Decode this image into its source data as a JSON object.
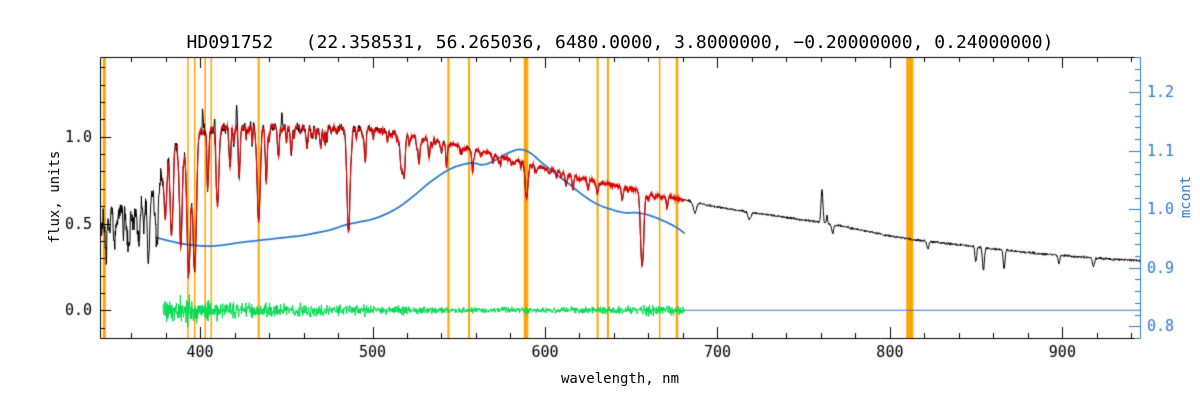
{
  "chart_data": {
    "type": "line",
    "title": "HD091752   (22.358531, 56.265036, 6480.0000, 3.8000000, −0.20000000, 0.24000000)",
    "xlabel": "wavelength, nm",
    "ylabel": "flux, units",
    "ylabel_right": "mcont",
    "xlim": [
      342,
      945
    ],
    "ylim": [
      -0.16,
      1.46
    ],
    "ylim_right": [
      0.78,
      1.26
    ],
    "x_ticks": [
      400,
      500,
      600,
      700,
      800,
      900
    ],
    "x_minor_step": 20,
    "y_ticks": [
      0.0,
      0.5,
      1.0
    ],
    "y_minor_step": 0.1,
    "y_ticks_right": [
      0.8,
      0.9,
      1.0,
      1.1,
      1.2
    ],
    "y_minor_right_step": 0.02,
    "grid": false,
    "legend": null,
    "colors": {
      "observed": "#000000",
      "fit": "#E60000",
      "mcont": "#2E7BD0",
      "residual": "#00DC50",
      "mask": "#FFA500",
      "axes": "#000000",
      "background": "#FFFFFF"
    },
    "series": [
      {
        "name": "observed spectrum",
        "color_key": "observed",
        "range": [
          342,
          945
        ]
      },
      {
        "name": "model fit",
        "color_key": "fit",
        "range": [
          378,
          681
        ]
      },
      {
        "name": "mcont continuum",
        "color_key": "mcont",
        "axis": "right",
        "range": [
          374,
          681
        ]
      },
      {
        "name": "fit residual",
        "color_key": "residual",
        "range": [
          378.5,
          681
        ],
        "center": 0.0
      },
      {
        "name": "zero line",
        "color_key": "mcont",
        "range": [
          681,
          945
        ],
        "value": 0.0
      }
    ],
    "mask_lines": [
      {
        "wl": 344.5,
        "w": 3
      },
      {
        "wl": 393.0,
        "w": 1.5
      },
      {
        "wl": 396.9,
        "w": 1.5
      },
      {
        "wl": 403.0,
        "w": 1.5
      },
      {
        "wl": 406.5,
        "w": 1.5
      },
      {
        "wl": 434.0,
        "w": 2
      },
      {
        "wl": 544.0,
        "w": 2
      },
      {
        "wl": 556.0,
        "w": 2
      },
      {
        "wl": 589.0,
        "w": 4.5
      },
      {
        "wl": 630.5,
        "w": 2
      },
      {
        "wl": 636.5,
        "w": 2
      },
      {
        "wl": 666.5,
        "w": 1.5
      },
      {
        "wl": 676.5,
        "w": 2.5
      },
      {
        "wl": 811.5,
        "w": 7
      }
    ],
    "model": {
      "observed_range": [
        342,
        945
      ],
      "fit_range": [
        378,
        681
      ],
      "fit_noise": 0.01,
      "residual_range": [
        378.5,
        681
      ],
      "zero_line_range": [
        681,
        945
      ],
      "continuum": [
        [
          342,
          0.56
        ],
        [
          352,
          0.58
        ],
        [
          360,
          0.6
        ],
        [
          366,
          0.63
        ],
        [
          372,
          0.68
        ],
        [
          376,
          0.76
        ],
        [
          380,
          0.86
        ],
        [
          384,
          0.94
        ],
        [
          388,
          0.99
        ],
        [
          393,
          1.01
        ],
        [
          398,
          1.03
        ],
        [
          404,
          1.04
        ],
        [
          412,
          1.055
        ],
        [
          420,
          1.065
        ],
        [
          430,
          1.065
        ],
        [
          440,
          1.06
        ],
        [
          452,
          1.055
        ],
        [
          464,
          1.05
        ],
        [
          476,
          1.055
        ],
        [
          488,
          1.05
        ],
        [
          500,
          1.042
        ],
        [
          512,
          1.025
        ],
        [
          524,
          1.005
        ],
        [
          536,
          0.98
        ],
        [
          548,
          0.953
        ],
        [
          560,
          0.925
        ],
        [
          572,
          0.895
        ],
        [
          584,
          0.862
        ],
        [
          596,
          0.832
        ],
        [
          608,
          0.8
        ],
        [
          620,
          0.768
        ],
        [
          632,
          0.738
        ],
        [
          644,
          0.712
        ],
        [
          656,
          0.69
        ],
        [
          668,
          0.662
        ],
        [
          681,
          0.635
        ],
        [
          695,
          0.605
        ],
        [
          710,
          0.578
        ],
        [
          725,
          0.556
        ],
        [
          740,
          0.535
        ],
        [
          755,
          0.513
        ],
        [
          770,
          0.49
        ],
        [
          785,
          0.458
        ],
        [
          800,
          0.428
        ],
        [
          815,
          0.405
        ],
        [
          830,
          0.388
        ],
        [
          845,
          0.372
        ],
        [
          860,
          0.354
        ],
        [
          875,
          0.338
        ],
        [
          890,
          0.324
        ],
        [
          905,
          0.312
        ],
        [
          920,
          0.3
        ],
        [
          935,
          0.29
        ],
        [
          945,
          0.285
        ]
      ],
      "noise_amp": [
        [
          342,
          0.055
        ],
        [
          362,
          0.055
        ],
        [
          372,
          0.05
        ],
        [
          382,
          0.038
        ],
        [
          395,
          0.03
        ],
        [
          410,
          0.026
        ],
        [
          440,
          0.022
        ],
        [
          480,
          0.02
        ],
        [
          505,
          0.016
        ],
        [
          530,
          0.011
        ],
        [
          560,
          0.009
        ],
        [
          600,
          0.008
        ],
        [
          640,
          0.008
        ],
        [
          680,
          0.007
        ],
        [
          720,
          0.006
        ],
        [
          760,
          0.006
        ],
        [
          800,
          0.006
        ],
        [
          850,
          0.0065
        ],
        [
          945,
          0.0065
        ]
      ],
      "absorption_lines": [
        [
          345.0,
          0.15,
          0.7
        ],
        [
          350.5,
          0.18,
          0.7
        ],
        [
          358.2,
          0.2,
          0.8
        ],
        [
          364.5,
          0.22,
          0.8
        ],
        [
          370.2,
          0.25,
          0.8
        ],
        [
          375.0,
          0.28,
          0.7
        ],
        [
          379.8,
          0.3,
          0.7
        ],
        [
          383.5,
          0.5,
          0.8
        ],
        [
          388.9,
          0.62,
          0.8
        ],
        [
          393.4,
          0.8,
          1.0
        ],
        [
          396.8,
          0.78,
          1.0
        ],
        [
          404.6,
          0.28,
          0.5
        ],
        [
          410.2,
          0.42,
          0.8
        ],
        [
          417.2,
          0.18,
          0.5
        ],
        [
          422.7,
          0.3,
          0.55
        ],
        [
          434.0,
          0.55,
          0.9
        ],
        [
          438.4,
          0.26,
          0.55
        ],
        [
          445.5,
          0.16,
          0.5
        ],
        [
          452.9,
          0.15,
          0.5
        ],
        [
          462.0,
          0.12,
          0.5
        ],
        [
          470.0,
          0.12,
          0.5
        ],
        [
          486.1,
          0.6,
          0.9
        ],
        [
          495.7,
          0.13,
          0.5
        ],
        [
          516.7,
          0.2,
          0.7
        ],
        [
          518.4,
          0.18,
          0.6
        ],
        [
          527.0,
          0.16,
          0.55
        ],
        [
          532.8,
          0.11,
          0.5
        ],
        [
          543.0,
          0.1,
          0.5
        ],
        [
          558.0,
          0.09,
          0.5
        ],
        [
          589.3,
          0.2,
          0.8
        ],
        [
          612.2,
          0.07,
          0.5
        ],
        [
          616.2,
          0.08,
          0.5
        ],
        [
          625.0,
          0.06,
          0.5
        ],
        [
          630.2,
          0.07,
          0.5
        ],
        [
          645.0,
          0.06,
          0.5
        ],
        [
          656.3,
          0.43,
          0.9
        ],
        [
          670.8,
          0.07,
          0.5
        ],
        [
          686.9,
          0.06,
          0.9
        ],
        [
          718.6,
          0.04,
          0.8
        ],
        [
          760.6,
          -0.19,
          0.55
        ],
        [
          766.8,
          0.05,
          0.6
        ],
        [
          822.0,
          0.04,
          0.6
        ],
        [
          849.8,
          0.09,
          0.5
        ],
        [
          854.2,
          0.13,
          0.55
        ],
        [
          866.2,
          0.11,
          0.5
        ],
        [
          898.0,
          0.05,
          0.5
        ],
        [
          918.0,
          0.05,
          0.6
        ]
      ],
      "black_spikes": [
        [
          401.6,
          -0.14,
          0.3
        ],
        [
          408.6,
          -0.11,
          0.3
        ],
        [
          421.3,
          -0.13,
          0.3
        ],
        [
          447.5,
          -0.09,
          0.3
        ],
        [
          763.5,
          -0.05,
          0.3
        ]
      ],
      "line_forest": {
        "range": [
          343,
          668
        ],
        "spacing": 0.9,
        "threshold": 0.45,
        "sigma": [
          0.22,
          0.45
        ],
        "amplitude": [
          [
            343,
            0.22
          ],
          [
            370,
            0.2
          ],
          [
            384,
            0.14
          ],
          [
            450,
            0.1
          ],
          [
            520,
            0.07
          ],
          [
            600,
            0.05
          ],
          [
            668,
            0.045
          ]
        ]
      },
      "residual_amp": [
        [
          378,
          0.045
        ],
        [
          395,
          0.04
        ],
        [
          420,
          0.032
        ],
        [
          460,
          0.03
        ],
        [
          500,
          0.022
        ],
        [
          530,
          0.016
        ],
        [
          560,
          0.013
        ],
        [
          590,
          0.014
        ],
        [
          615,
          0.016
        ],
        [
          640,
          0.02
        ],
        [
          660,
          0.025
        ],
        [
          681,
          0.022
        ]
      ],
      "mcont_points": [
        [
          374,
          0.952
        ],
        [
          382,
          0.946
        ],
        [
          390,
          0.941
        ],
        [
          398,
          0.938
        ],
        [
          406,
          0.937
        ],
        [
          414,
          0.939
        ],
        [
          423,
          0.943
        ],
        [
          432,
          0.946
        ],
        [
          441,
          0.949
        ],
        [
          450,
          0.952
        ],
        [
          459,
          0.955
        ],
        [
          468,
          0.96
        ],
        [
          476,
          0.965
        ],
        [
          484,
          0.973
        ],
        [
          492,
          0.978
        ],
        [
          500,
          0.983
        ],
        [
          508,
          0.992
        ],
        [
          516,
          1.005
        ],
        [
          524,
          1.023
        ],
        [
          532,
          1.043
        ],
        [
          540,
          1.06
        ],
        [
          546,
          1.07
        ],
        [
          552,
          1.076
        ],
        [
          558,
          1.079
        ],
        [
          564,
          1.076
        ],
        [
          570,
          1.082
        ],
        [
          578,
          1.095
        ],
        [
          585,
          1.102
        ],
        [
          591,
          1.097
        ],
        [
          598,
          1.08
        ],
        [
          606,
          1.061
        ],
        [
          614,
          1.043
        ],
        [
          622,
          1.024
        ],
        [
          630,
          1.009
        ],
        [
          638,
          1.0
        ],
        [
          646,
          0.994
        ],
        [
          653,
          0.994
        ],
        [
          660,
          0.99
        ],
        [
          668,
          0.981
        ],
        [
          675,
          0.971
        ],
        [
          681,
          0.959
        ]
      ]
    }
  }
}
